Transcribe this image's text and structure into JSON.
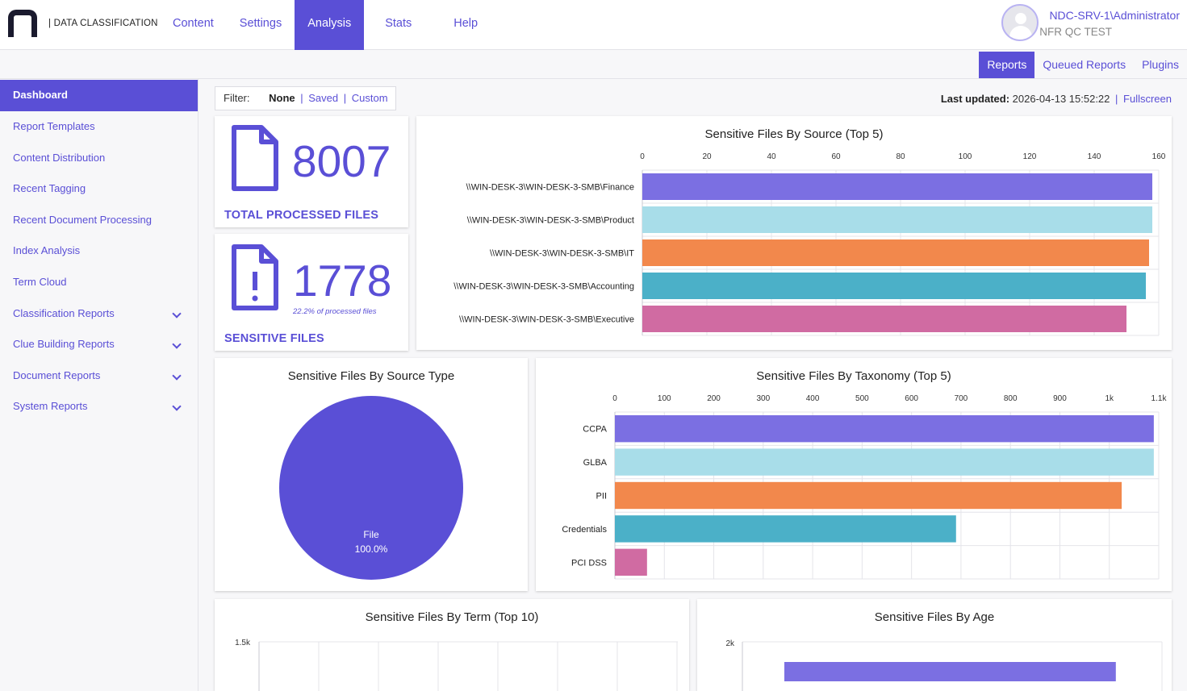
{
  "brand": "| DATA CLASSIFICATION",
  "nav": [
    "Content",
    "Settings",
    "Analysis",
    "Stats",
    "Help"
  ],
  "user": {
    "name": "NDC-SRV-1\\Administrator",
    "org": "NFR QC TEST"
  },
  "subnav": [
    "Reports",
    "Queued Reports",
    "Plugins"
  ],
  "sidebar": [
    {
      "label": "Dashboard",
      "expandable": false
    },
    {
      "label": "Report Templates",
      "expandable": false
    },
    {
      "label": "Content Distribution",
      "expandable": false
    },
    {
      "label": "Recent Tagging",
      "expandable": false
    },
    {
      "label": "Recent Document Processing",
      "expandable": false
    },
    {
      "label": "Index Analysis",
      "expandable": false
    },
    {
      "label": "Term Cloud",
      "expandable": false
    },
    {
      "label": "Classification Reports",
      "expandable": true
    },
    {
      "label": "Clue Building Reports",
      "expandable": true
    },
    {
      "label": "Document Reports",
      "expandable": true
    },
    {
      "label": "System Reports",
      "expandable": true
    }
  ],
  "filter": {
    "label": "Filter:",
    "none": "None",
    "saved": "Saved",
    "custom": "Custom"
  },
  "updated": {
    "label": "Last updated:",
    "value": "2026-04-13 15:52:22",
    "fullscreen": "Fullscreen"
  },
  "kpi": {
    "total": {
      "value": "8007",
      "title": "TOTAL PROCESSED FILES"
    },
    "sensitive": {
      "value": "1778",
      "title": "SENSITIVE FILES",
      "sub": "22.2% of processed files"
    }
  },
  "colors": {
    "accent": "#5a4fd6",
    "series": [
      "#7b6fe2",
      "#a8dde9",
      "#f2884c",
      "#4bb0c8",
      "#d06ba2"
    ]
  },
  "chart_data": [
    {
      "type": "bar",
      "orientation": "horizontal",
      "title": "Sensitive Files By Source (Top 5)",
      "categories": [
        "\\\\WIN-DESK-3\\WIN-DESK-3-SMB\\Finance",
        "\\\\WIN-DESK-3\\WIN-DESK-3-SMB\\Product",
        "\\\\WIN-DESK-3\\WIN-DESK-3-SMB\\IT",
        "\\\\WIN-DESK-3\\WIN-DESK-3-SMB\\Accounting",
        "\\\\WIN-DESK-3\\WIN-DESK-3-SMB\\Executive"
      ],
      "values": [
        158,
        158,
        157,
        156,
        150
      ],
      "xlim": [
        0,
        160
      ],
      "ticks": [
        "0",
        "20",
        "40",
        "60",
        "80",
        "100",
        "120",
        "140",
        "160"
      ],
      "grid": true,
      "legend": "none"
    },
    {
      "type": "pie",
      "title": "Sensitive Files By Source Type",
      "labels": [
        "File"
      ],
      "values": [
        100.0
      ],
      "slice_labels": [
        "File",
        "100.0%"
      ]
    },
    {
      "type": "bar",
      "orientation": "horizontal",
      "title": "Sensitive Files By Taxonomy (Top 5)",
      "categories": [
        "CCPA",
        "GLBA",
        "PII",
        "Credentials",
        "PCI DSS"
      ],
      "values": [
        1090,
        1090,
        1025,
        690,
        65
      ],
      "xlim": [
        0,
        1100
      ],
      "ticks": [
        "0",
        "100",
        "200",
        "300",
        "400",
        "500",
        "600",
        "700",
        "800",
        "900",
        "1k",
        "1.1k"
      ],
      "grid": true,
      "legend": "none"
    },
    {
      "type": "bar",
      "title": "Sensitive Files By Term (Top 10)",
      "ticks": [
        "1.5k"
      ],
      "grid": true
    },
    {
      "type": "bar",
      "orientation": "horizontal",
      "title": "Sensitive Files By Age",
      "ticks": [
        "2k"
      ],
      "values": [
        1780
      ],
      "grid": true
    }
  ]
}
